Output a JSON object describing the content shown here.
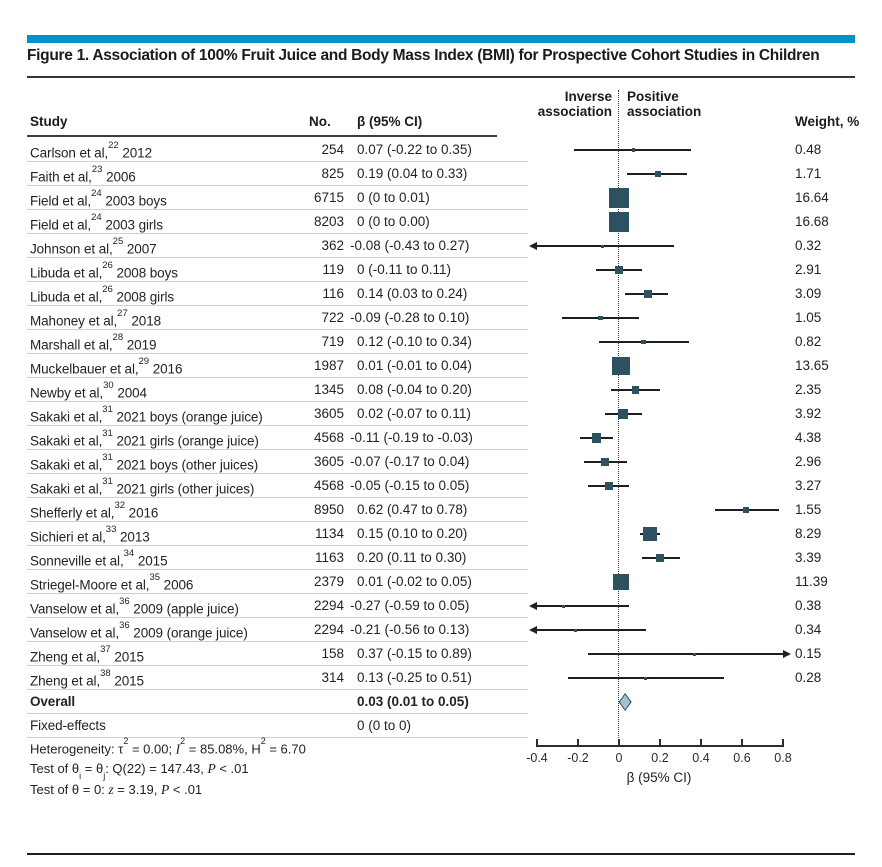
{
  "figure": {
    "title": "Figure 1. Association of 100% Fruit Juice and Body Mass Index (BMI) for Prospective Cohort Studies in Children"
  },
  "table": {
    "headers": {
      "study": "Study",
      "n": "No.",
      "beta": "β (95% CI)",
      "inverse_line1": "Inverse",
      "inverse_line2": "association",
      "positive_line1": "Positive",
      "positive_line2": "association",
      "weight": "Weight, %"
    }
  },
  "chart_data": {
    "type": "scatter",
    "variant": "forest-plot",
    "title": "Figure 1. Association of 100% Fruit Juice and Body Mass Index (BMI) for Prospective Cohort Studies in Children",
    "xlabel": "β (95% CI)",
    "xlim": [
      -0.4,
      0.8
    ],
    "xticks": [
      "-0.4",
      "-0.2",
      "0",
      "0.2",
      "0.4",
      "0.6",
      "0.8"
    ],
    "zero_reference_line": 0,
    "legend_position": "none",
    "grid": false,
    "rows": [
      {
        "study": "Carlson et al,",
        "ref": "22",
        "tail": " 2012",
        "n": "254",
        "beta_ci": "0.07 (-0.22 to 0.35)",
        "beta": 0.07,
        "lo": -0.22,
        "hi": 0.35,
        "weight": "0.48",
        "marker": "square",
        "bold": false
      },
      {
        "study": "Faith et al,",
        "ref": "23",
        "tail": " 2006",
        "n": "825",
        "beta_ci": "0.19 (0.04 to 0.33)",
        "beta": 0.19,
        "lo": 0.04,
        "hi": 0.33,
        "weight": "1.71",
        "marker": "square",
        "bold": false
      },
      {
        "study": "Field et al,",
        "ref": "24",
        "tail": " 2003 boys",
        "n": "6715",
        "beta_ci": "0 (0 to 0.01)",
        "beta": 0,
        "lo": 0,
        "hi": 0.01,
        "weight": "16.64",
        "marker": "square",
        "bold": false
      },
      {
        "study": "Field et al,",
        "ref": "24",
        "tail": " 2003 girls",
        "n": "8203",
        "beta_ci": "0 (0 to 0.00)",
        "beta": 0,
        "lo": 0,
        "hi": 0.0,
        "weight": "16.68",
        "marker": "square",
        "bold": false
      },
      {
        "study": "Johnson et al,",
        "ref": "25",
        "tail": " 2007",
        "n": "362",
        "beta_ci": "-0.08 (-0.43 to 0.27)",
        "beta": -0.08,
        "lo": -0.43,
        "hi": 0.27,
        "weight": "0.32",
        "marker": "square",
        "bold": false
      },
      {
        "study": "Libuda et al,",
        "ref": "26",
        "tail": " 2008 boys",
        "n": "119",
        "beta_ci": "0 (-0.11 to 0.11)",
        "beta": 0,
        "lo": -0.11,
        "hi": 0.11,
        "weight": "2.91",
        "marker": "square",
        "bold": false
      },
      {
        "study": "Libuda et al,",
        "ref": "26",
        "tail": " 2008 girls",
        "n": "116",
        "beta_ci": "0.14 (0.03 to 0.24)",
        "beta": 0.14,
        "lo": 0.03,
        "hi": 0.24,
        "weight": "3.09",
        "marker": "square",
        "bold": false
      },
      {
        "study": "Mahoney et al,",
        "ref": "27",
        "tail": " 2018",
        "n": "722",
        "beta_ci": "-0.09 (-0.28 to 0.10)",
        "beta": -0.09,
        "lo": -0.28,
        "hi": 0.1,
        "weight": "1.05",
        "marker": "square",
        "bold": false
      },
      {
        "study": "Marshall et al,",
        "ref": "28",
        "tail": " 2019",
        "n": "719",
        "beta_ci": "0.12 (-0.10 to 0.34)",
        "beta": 0.12,
        "lo": -0.1,
        "hi": 0.34,
        "weight": "0.82",
        "marker": "square",
        "bold": false
      },
      {
        "study": "Muckelbauer et al,",
        "ref": "29",
        "tail": " 2016",
        "n": "1987",
        "beta_ci": "0.01 (-0.01 to 0.04)",
        "beta": 0.01,
        "lo": -0.01,
        "hi": 0.04,
        "weight": "13.65",
        "marker": "square",
        "bold": false
      },
      {
        "study": "Newby et al,",
        "ref": "30",
        "tail": " 2004",
        "n": "1345",
        "beta_ci": "0.08 (-0.04 to 0.20)",
        "beta": 0.08,
        "lo": -0.04,
        "hi": 0.2,
        "weight": "2.35",
        "marker": "square",
        "bold": false
      },
      {
        "study": "Sakaki et al,",
        "ref": "31",
        "tail": " 2021 boys (orange juice)",
        "n": "3605",
        "beta_ci": "0.02 (-0.07 to 0.11)",
        "beta": 0.02,
        "lo": -0.07,
        "hi": 0.11,
        "weight": "3.92",
        "marker": "square",
        "bold": false
      },
      {
        "study": "Sakaki et al,",
        "ref": "31",
        "tail": " 2021 girls (orange juice)",
        "n": "4568",
        "beta_ci": "-0.11 (-0.19 to -0.03)",
        "beta": -0.11,
        "lo": -0.19,
        "hi": -0.03,
        "weight": "4.38",
        "marker": "square",
        "bold": false
      },
      {
        "study": "Sakaki et al,",
        "ref": "31",
        "tail": " 2021 boys (other juices)",
        "n": "3605",
        "beta_ci": "-0.07 (-0.17 to 0.04)",
        "beta": -0.07,
        "lo": -0.17,
        "hi": 0.04,
        "weight": "2.96",
        "marker": "square",
        "bold": false
      },
      {
        "study": "Sakaki et al,",
        "ref": "31",
        "tail": " 2021 girls (other juices)",
        "n": "4568",
        "beta_ci": "-0.05 (-0.15 to 0.05)",
        "beta": -0.05,
        "lo": -0.15,
        "hi": 0.05,
        "weight": "3.27",
        "marker": "square",
        "bold": false
      },
      {
        "study": "Shefferly et al,",
        "ref": "32",
        "tail": " 2016",
        "n": "8950",
        "beta_ci": "0.62 (0.47 to 0.78)",
        "beta": 0.62,
        "lo": 0.47,
        "hi": 0.78,
        "weight": "1.55",
        "marker": "square",
        "bold": false
      },
      {
        "study": "Sichieri et al,",
        "ref": "33",
        "tail": " 2013",
        "n": "1134",
        "beta_ci": "0.15 (0.10 to 0.20)",
        "beta": 0.15,
        "lo": 0.1,
        "hi": 0.2,
        "weight": "8.29",
        "marker": "square",
        "bold": false
      },
      {
        "study": "Sonneville et al,",
        "ref": "34",
        "tail": " 2015",
        "n": "1163",
        "beta_ci": "0.20 (0.11 to 0.30)",
        "beta": 0.2,
        "lo": 0.11,
        "hi": 0.3,
        "weight": "3.39",
        "marker": "square",
        "bold": false
      },
      {
        "study": "Striegel-Moore et al,",
        "ref": "35",
        "tail": " 2006",
        "n": "2379",
        "beta_ci": "0.01 (-0.02 to 0.05)",
        "beta": 0.01,
        "lo": -0.02,
        "hi": 0.05,
        "weight": "11.39",
        "marker": "square",
        "bold": false
      },
      {
        "study": "Vanselow et al,",
        "ref": "36",
        "tail": " 2009 (apple juice)",
        "n": "2294",
        "beta_ci": "-0.27 (-0.59 to 0.05)",
        "beta": -0.27,
        "lo": -0.59,
        "hi": 0.05,
        "weight": "0.38",
        "marker": "square",
        "bold": false
      },
      {
        "study": "Vanselow et al,",
        "ref": "36",
        "tail": " 2009 (orange juice)",
        "n": "2294",
        "beta_ci": "-0.21 (-0.56 to 0.13)",
        "beta": -0.21,
        "lo": -0.56,
        "hi": 0.13,
        "weight": "0.34",
        "marker": "square",
        "bold": false
      },
      {
        "study": "Zheng et al,",
        "ref": "37",
        "tail": " 2015",
        "n": "158",
        "beta_ci": "0.37 (-0.15 to 0.89)",
        "beta": 0.37,
        "lo": -0.15,
        "hi": 0.89,
        "weight": "0.15",
        "marker": "square",
        "bold": false
      },
      {
        "study": "Zheng et al,",
        "ref": "38",
        "tail": " 2015",
        "n": "314",
        "beta_ci": "0.13 (-0.25 to 0.51)",
        "beta": 0.13,
        "lo": -0.25,
        "hi": 0.51,
        "weight": "0.28",
        "marker": "square",
        "bold": false
      },
      {
        "study": "Overall",
        "ref": null,
        "tail": "",
        "n": "",
        "beta_ci": "0.03 (0.01 to 0.05)",
        "beta": 0.03,
        "lo": 0.01,
        "hi": 0.05,
        "weight": "",
        "marker": "diamond",
        "bold": true
      },
      {
        "study": "Fixed-effects",
        "ref": null,
        "tail": "",
        "n": "",
        "beta_ci": "0 (0 to 0)",
        "beta": 0,
        "lo": 0,
        "hi": 0,
        "weight": "",
        "marker": "none",
        "bold": false
      }
    ]
  },
  "notes": [
    [
      {
        "t": "Heterogeneity: τ"
      },
      {
        "t": "2",
        "sup": true
      },
      {
        "t": " = 0.00; "
      },
      {
        "t": "I",
        "it": true
      },
      {
        "t": "2",
        "sup": true
      },
      {
        "t": " = 85.08%, H"
      },
      {
        "t": "2",
        "sup": true
      },
      {
        "t": " = 6.70"
      }
    ],
    [
      {
        "t": "Test of θ"
      },
      {
        "t": "i",
        "sub": true
      },
      {
        "t": " = θ"
      },
      {
        "t": "j",
        "sub": true
      },
      {
        "t": ": Q(22) = 147.43, "
      },
      {
        "t": "P",
        "it": true
      },
      {
        "t": " < .01"
      }
    ],
    [
      {
        "t": "Test of θ = 0: "
      },
      {
        "t": "z",
        "it": true
      },
      {
        "t": " = 3.19, "
      },
      {
        "t": "P",
        "it": true
      },
      {
        "t": " < .01"
      }
    ]
  ],
  "colors": {
    "accent_bar": "#0092c8",
    "marker_square": "#2c5160",
    "diamond_fill": "#a3c2d6",
    "diamond_border": "#2b4d5f",
    "ci_line": "#1f1f1f",
    "row_separator": "#d4d1cb",
    "rule_dark": "#333333"
  }
}
